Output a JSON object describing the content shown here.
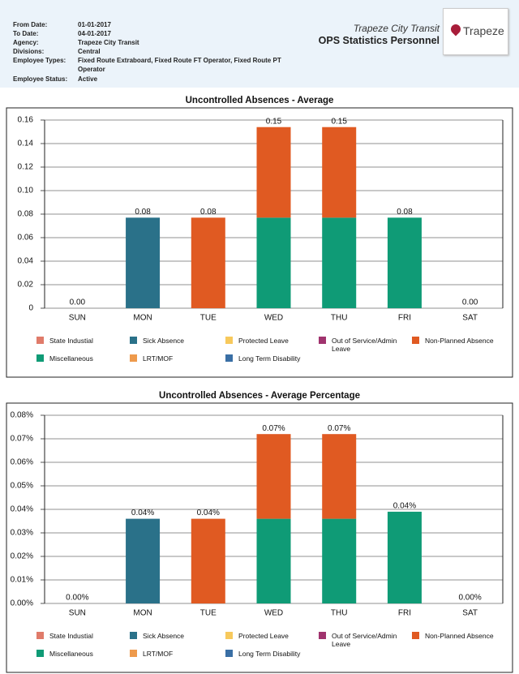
{
  "header": {
    "fields": [
      {
        "label": "From Date:",
        "value": "01-01-2017"
      },
      {
        "label": "To Date:",
        "value": "04-01-2017"
      },
      {
        "label": "Agency:",
        "value": "Trapeze City Transit"
      },
      {
        "label": "Divisions:",
        "value": "Central"
      },
      {
        "label": "Employee Types:",
        "value": "Fixed Route Extraboard, Fixed Route FT Operator, Fixed Route PT Operator"
      },
      {
        "label": "Employee Status:",
        "value": "Active"
      }
    ],
    "org": "Trapeze City Transit",
    "report": "OPS  Statistics Personnel",
    "logo": "Trapeze"
  },
  "chart_data": [
    {
      "type": "bar",
      "title": "Uncontrolled Absences - Average",
      "categories": [
        "SUN",
        "MON",
        "TUE",
        "WED",
        "THU",
        "FRI",
        "SAT"
      ],
      "series": [
        {
          "name": "State Industial",
          "color": "#e07b6a",
          "values": [
            0,
            0,
            0,
            0,
            0,
            0,
            0
          ]
        },
        {
          "name": "Sick Absence",
          "color": "#2a7189",
          "values": [
            0,
            0.077,
            0,
            0,
            0,
            0,
            0
          ]
        },
        {
          "name": "Protected Leave",
          "color": "#f7c95c",
          "values": [
            0,
            0,
            0,
            0,
            0,
            0,
            0
          ]
        },
        {
          "name": "Out of Service/Admin Leave",
          "color": "#a0336e",
          "values": [
            0,
            0,
            0,
            0,
            0,
            0,
            0
          ]
        },
        {
          "name": "Non-Planned Absence",
          "color": "#e05a22",
          "values": [
            0,
            0,
            0.077,
            0.077,
            0.077,
            0,
            0
          ]
        },
        {
          "name": "Miscellaneous",
          "color": "#0f9b76",
          "values": [
            0,
            0,
            0,
            0.077,
            0.077,
            0.077,
            0
          ]
        },
        {
          "name": "LRT/MOF",
          "color": "#ee9a4c",
          "values": [
            0,
            0,
            0,
            0,
            0,
            0,
            0
          ]
        },
        {
          "name": "Long Term Disability",
          "color": "#3a6fa5",
          "values": [
            0,
            0,
            0,
            0,
            0,
            0,
            0
          ]
        }
      ],
      "totals": [
        0,
        0.077,
        0.077,
        0.154,
        0.154,
        0.077,
        0
      ],
      "total_labels": [
        "0.00",
        "0.08",
        "0.08",
        "0.15",
        "0.15",
        "0.08",
        "0.00"
      ],
      "ylim": [
        0,
        0.16
      ],
      "yticks": [
        0,
        0.02,
        0.04,
        0.06,
        0.08,
        {
          "value": 0.1,
          "label": "0.10"
        },
        0.12,
        0.14,
        0.16
      ],
      "grid": true
    },
    {
      "type": "bar",
      "title": "Uncontrolled Absences - Average Percentage",
      "categories": [
        "SUN",
        "MON",
        "TUE",
        "WED",
        "THU",
        "FRI",
        "SAT"
      ],
      "series": [
        {
          "name": "State Industial",
          "color": "#e07b6a",
          "values": [
            0,
            0,
            0,
            0,
            0,
            0,
            0
          ]
        },
        {
          "name": "Sick Absence",
          "color": "#2a7189",
          "values": [
            0,
            0.036,
            0,
            0,
            0,
            0,
            0
          ]
        },
        {
          "name": "Protected Leave",
          "color": "#f7c95c",
          "values": [
            0,
            0,
            0,
            0,
            0,
            0,
            0
          ]
        },
        {
          "name": "Out of Service/Admin Leave",
          "color": "#a0336e",
          "values": [
            0,
            0,
            0,
            0,
            0,
            0,
            0
          ]
        },
        {
          "name": "Non-Planned Absence",
          "color": "#e05a22",
          "values": [
            0,
            0,
            0.036,
            0.036,
            0.036,
            0,
            0
          ]
        },
        {
          "name": "Miscellaneous",
          "color": "#0f9b76",
          "values": [
            0,
            0,
            0,
            0.036,
            0.036,
            0.039,
            0
          ]
        },
        {
          "name": "LRT/MOF",
          "color": "#ee9a4c",
          "values": [
            0,
            0,
            0,
            0,
            0,
            0,
            0
          ]
        },
        {
          "name": "Long Term Disability",
          "color": "#3a6fa5",
          "values": [
            0,
            0,
            0,
            0,
            0,
            0,
            0
          ]
        }
      ],
      "totals": [
        0,
        0.036,
        0.036,
        0.072,
        0.072,
        0.039,
        0
      ],
      "total_labels": [
        "0.00%",
        "0.04%",
        "0.04%",
        "0.07%",
        "0.07%",
        "0.04%",
        "0.00%"
      ],
      "ylim": [
        0,
        0.08
      ],
      "yticks": [
        {
          "value": 0,
          "label": "0.00%"
        },
        {
          "value": 0.01,
          "label": "0.01%"
        },
        {
          "value": 0.02,
          "label": "0.02%"
        },
        {
          "value": 0.03,
          "label": "0.03%"
        },
        {
          "value": 0.04,
          "label": "0.04%"
        },
        {
          "value": 0.05,
          "label": "0.05%"
        },
        {
          "value": 0.06,
          "label": "0.06%"
        },
        {
          "value": 0.07,
          "label": "0.07%"
        },
        {
          "value": 0.08,
          "label": "0.08%"
        }
      ],
      "grid": true
    }
  ]
}
